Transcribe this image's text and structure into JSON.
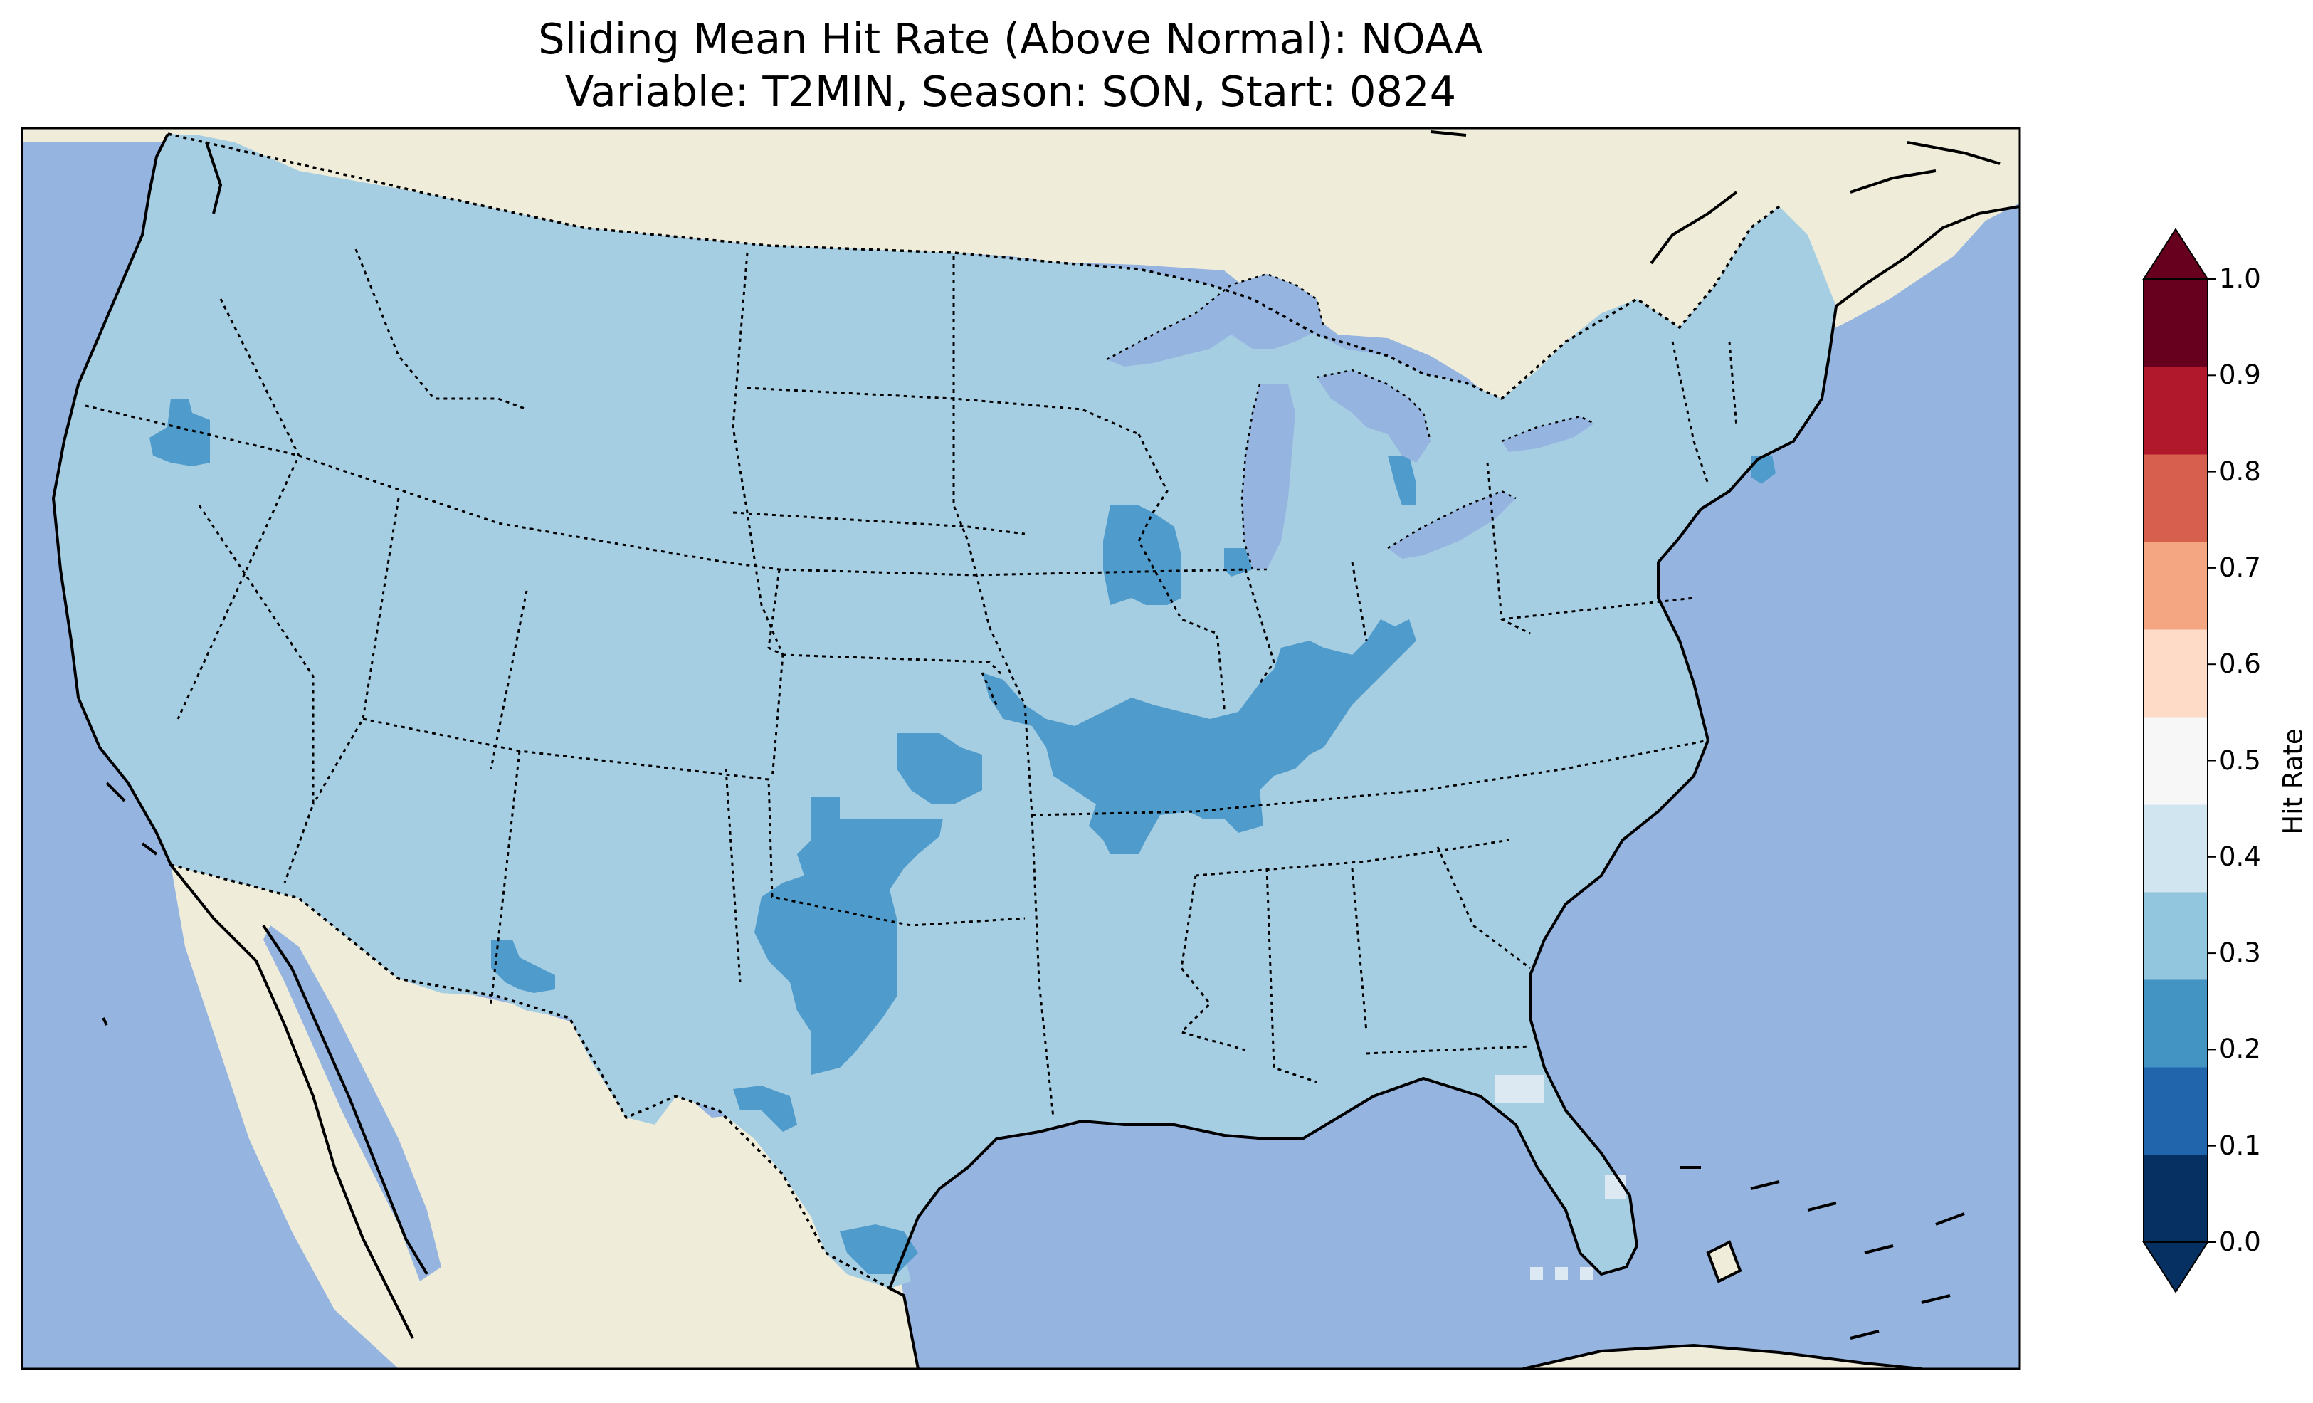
{
  "title": {
    "line1": "Sliding Mean Hit Rate (Above Normal): NOAA",
    "line2": "Variable: T2MIN, Season: SON, Start: 0824"
  },
  "colors": {
    "ocean": "#95b4e0",
    "land": "#efedda",
    "us_field": "#a6cee3",
    "low_zone": "#4f9bcb",
    "high_zone": "#dde9f2"
  },
  "colorbar": {
    "label": "Hit Rate",
    "ticks": [
      "0.0",
      "0.1",
      "0.2",
      "0.3",
      "0.4",
      "0.5",
      "0.6",
      "0.7",
      "0.8",
      "0.9",
      "1.0"
    ],
    "colors": [
      "#053061",
      "#2166ac",
      "#4393c3",
      "#92c5de",
      "#d1e5f0",
      "#f7f7f7",
      "#fddbc7",
      "#f4a582",
      "#d6604d",
      "#b2182b",
      "#67001f"
    ],
    "extend": "both"
  },
  "map_data": {
    "region": "Contiguous United States",
    "field": "hit rate",
    "dominant_range": [
      0.3,
      0.4
    ],
    "low_range": [
      0.2,
      0.3
    ],
    "high_range": [
      0.4,
      0.5
    ]
  }
}
